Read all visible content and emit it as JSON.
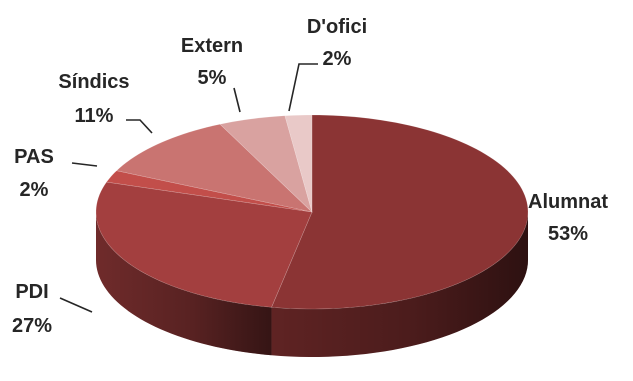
{
  "chart_data": {
    "type": "pie",
    "style": "3d-tilted",
    "title": "",
    "slices": [
      {
        "label": "Alumnat",
        "value": 53,
        "display": "53%",
        "color": "#8b3434"
      },
      {
        "label": "PDI",
        "value": 27,
        "display": "27%",
        "color": "#a33f3f"
      },
      {
        "label": "PAS",
        "value": 2,
        "display": "2%",
        "color": "#c24e4a"
      },
      {
        "label": "Síndics",
        "value": 11,
        "display": "11%",
        "color": "#c97471"
      },
      {
        "label": "Extern",
        "value": 5,
        "display": "5%",
        "color": "#d9a2a0"
      },
      {
        "label": "D'ofici",
        "value": 2,
        "display": "2%",
        "color": "#e9c9c8"
      }
    ],
    "legend": "none",
    "data_labels": "outside-with-leader-lines"
  }
}
